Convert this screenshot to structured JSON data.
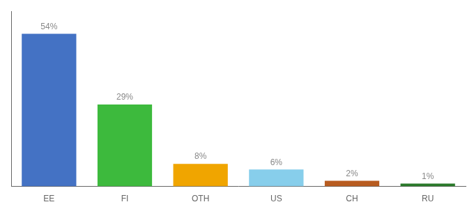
{
  "chart_data": {
    "type": "bar",
    "categories": [
      "EE",
      "FI",
      "OTH",
      "US",
      "CH",
      "RU"
    ],
    "values": [
      54,
      29,
      8,
      6,
      2,
      1
    ],
    "value_labels": [
      "54%",
      "29%",
      "8%",
      "6%",
      "2%",
      "1%"
    ],
    "data_labels": true,
    "colors": [
      "#4472c4",
      "#3dba3d",
      "#f0a500",
      "#87ceeb",
      "#b85c20",
      "#2a7a2a"
    ],
    "ylim": [
      0,
      62
    ],
    "grid": false,
    "tick_labels": "x"
  }
}
